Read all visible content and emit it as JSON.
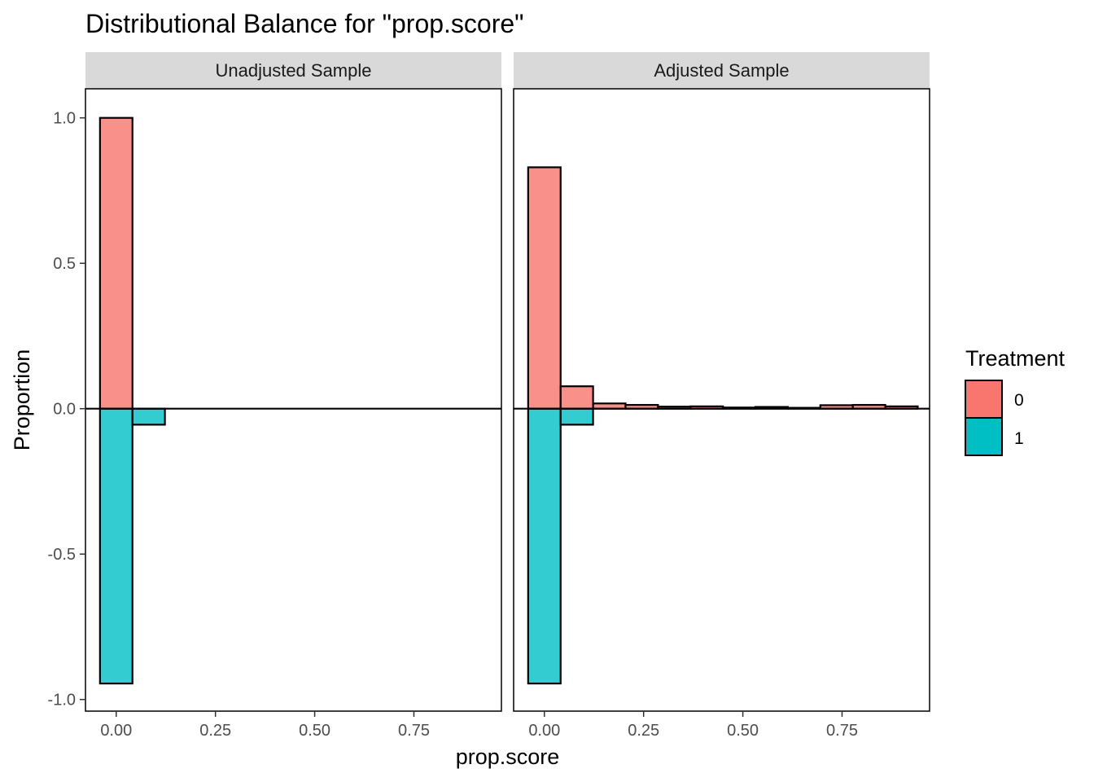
{
  "chart_data": {
    "type": "bar",
    "title": "Distributional Balance for \"prop.score\"",
    "xlabel": "prop.score",
    "ylabel": "Proportion",
    "xlim": [
      -0.0775,
      0.9705
    ],
    "ylim": [
      -1.04,
      1.1
    ],
    "x_ticks": [
      0.0,
      0.25,
      0.5,
      0.75
    ],
    "x_tick_labels": [
      "0.00",
      "0.25",
      "0.50",
      "0.75"
    ],
    "y_ticks": [
      1.0,
      0.5,
      0.0,
      -0.5,
      -1.0
    ],
    "y_tick_labels": [
      "1.0",
      "0.5",
      "0.0",
      "-0.5",
      "-1.0"
    ],
    "bin_width": 0.0818,
    "bin_centers": [
      0.0,
      0.0818,
      0.1636,
      0.2454,
      0.3272,
      0.409,
      0.4908,
      0.5726,
      0.6544,
      0.7362,
      0.818,
      0.8998
    ],
    "grid": false,
    "legend": {
      "title": "Treatment",
      "position": "right",
      "entries": [
        {
          "label": "0",
          "color": "#F8766D"
        },
        {
          "label": "1",
          "color": "#00BFC4"
        }
      ]
    },
    "facets": [
      {
        "label": "Unadjusted Sample",
        "series": [
          {
            "name": "0",
            "color": "#F8766D",
            "values": [
              1.0,
              0,
              0,
              0,
              0,
              0,
              0,
              0,
              0,
              0,
              0,
              0
            ]
          },
          {
            "name": "1",
            "color": "#00BFC4",
            "values": [
              -0.945,
              -0.055,
              0,
              0,
              0,
              0,
              0,
              0,
              0,
              0,
              0,
              0
            ]
          }
        ]
      },
      {
        "label": "Adjusted Sample",
        "series": [
          {
            "name": "0",
            "color": "#F8766D",
            "values": [
              0.83,
              0.077,
              0.018,
              0.013,
              0.007,
              0.008,
              0.004,
              0.006,
              0.003,
              0.012,
              0.013,
              0.008
            ]
          },
          {
            "name": "1",
            "color": "#00BFC4",
            "values": [
              -0.945,
              -0.055,
              0,
              0,
              0,
              0,
              0,
              0,
              0,
              0,
              0,
              0
            ]
          }
        ]
      }
    ]
  }
}
